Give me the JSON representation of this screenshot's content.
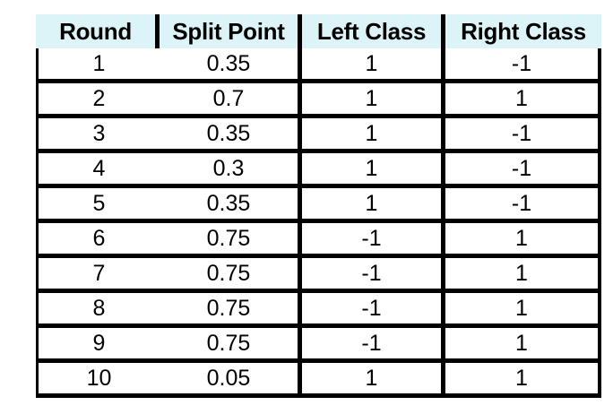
{
  "table": {
    "headers": [
      "Round",
      "Split Point",
      "Left Class",
      "Right Class"
    ],
    "rows": [
      [
        "1",
        "0.35",
        "1",
        "-1"
      ],
      [
        "2",
        "0.7",
        "1",
        "1"
      ],
      [
        "3",
        "0.35",
        "1",
        "-1"
      ],
      [
        "4",
        "0.3",
        "1",
        "-1"
      ],
      [
        "5",
        "0.35",
        "1",
        "-1"
      ],
      [
        "6",
        "0.75",
        "-1",
        "1"
      ],
      [
        "7",
        "0.75",
        "-1",
        "1"
      ],
      [
        "8",
        "0.75",
        "-1",
        "1"
      ],
      [
        "9",
        "0.75",
        "-1",
        "1"
      ],
      [
        "10",
        "0.05",
        "1",
        "1"
      ]
    ]
  },
  "colors": {
    "header_background": "#dcf4f7",
    "grid_lines": "#000000",
    "text": "#000000"
  }
}
